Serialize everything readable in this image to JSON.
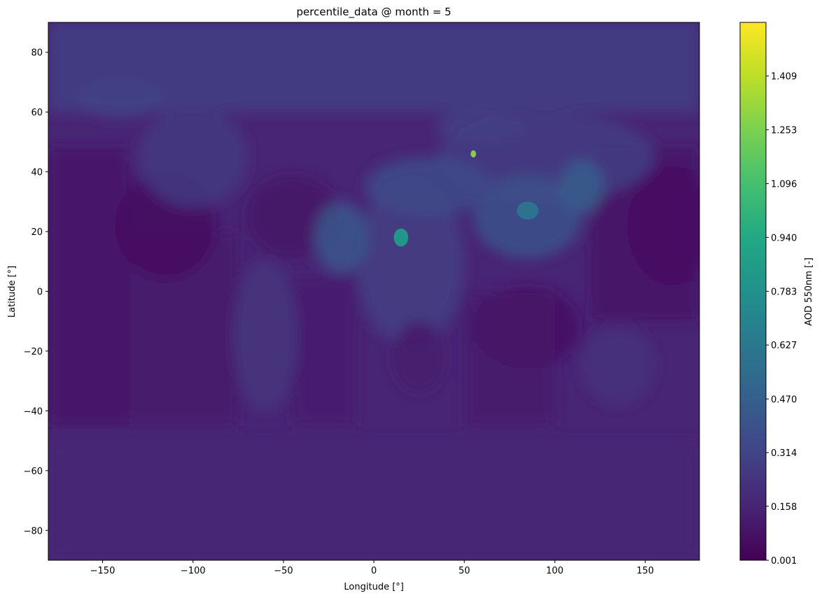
{
  "chart_data": {
    "type": "heatmap",
    "title": "percentile_data @ month = 5",
    "xlabel": "Longitude [°]",
    "ylabel": "Latitude [°]",
    "xlim": [
      -180,
      180
    ],
    "ylim": [
      -90,
      90
    ],
    "x_ticks": [
      -150,
      -100,
      -50,
      0,
      50,
      100,
      150
    ],
    "x_tick_labels": [
      "−150",
      "−100",
      "−50",
      "0",
      "50",
      "100",
      "150"
    ],
    "y_ticks": [
      80,
      60,
      40,
      20,
      0,
      -20,
      -40,
      -60,
      -80
    ],
    "y_tick_labels": [
      "80",
      "60",
      "40",
      "20",
      "0",
      "−20",
      "−40",
      "−60",
      "−80"
    ],
    "grid": false,
    "colorbar": {
      "label": "AOD 550nm [-]",
      "colormap": "viridis",
      "range": [
        0.001,
        1.565
      ],
      "tick_values": [
        0.001,
        0.158,
        0.314,
        0.47,
        0.627,
        0.783,
        0.94,
        1.096,
        1.253,
        1.409
      ],
      "tick_labels": [
        "0.001",
        "0.158",
        "0.314",
        "0.470",
        "0.627",
        "0.783",
        "0.940",
        "1.096",
        "1.253",
        "1.409"
      ]
    },
    "regions": [
      {
        "shape": "rect",
        "lon": [
          -180,
          180
        ],
        "lat": [
          60,
          90
        ],
        "value": 0.27
      },
      {
        "shape": "rect",
        "lon": [
          -180,
          180
        ],
        "lat": [
          -50,
          -90
        ],
        "value": 0.17
      },
      {
        "shape": "rect",
        "lon": [
          -180,
          -135
        ],
        "lat": [
          -45,
          48
        ],
        "value": 0.11
      },
      {
        "shape": "rect",
        "lon": [
          -135,
          -75
        ],
        "lat": [
          -45,
          20
        ],
        "value": 0.12
      },
      {
        "shape": "rect",
        "lon": [
          120,
          180
        ],
        "lat": [
          -10,
          48
        ],
        "value": 0.09
      },
      {
        "shape": "rect",
        "lon": [
          -45,
          -10
        ],
        "lat": [
          -45,
          5
        ],
        "value": 0.13
      },
      {
        "shape": "rect",
        "lon": [
          50,
          100
        ],
        "lat": [
          -45,
          0
        ],
        "value": 0.12
      },
      {
        "shape": "ellipse",
        "lon": -115,
        "lat": 22,
        "rlon": 28,
        "rlat": 18,
        "value": 0.06
      },
      {
        "shape": "ellipse",
        "lon": 165,
        "lat": 22,
        "rlon": 25,
        "rlat": 20,
        "value": 0.07
      },
      {
        "shape": "ellipse",
        "lon": 85,
        "lat": -12,
        "rlon": 30,
        "rlat": 14,
        "value": 0.08
      },
      {
        "shape": "ellipse",
        "lon": -45,
        "lat": 25,
        "rlon": 26,
        "rlat": 14,
        "value": 0.09
      },
      {
        "shape": "ellipse",
        "lon": -100,
        "lat": 45,
        "rlon": 30,
        "rlat": 17,
        "value": 0.25
      },
      {
        "shape": "ellipse",
        "lon": -60,
        "lat": -15,
        "rlon": 18,
        "rlat": 25,
        "value": 0.23
      },
      {
        "shape": "ellipse",
        "lon": 20,
        "lat": 10,
        "rlon": 30,
        "rlat": 28,
        "value": 0.28
      },
      {
        "shape": "ellipse",
        "lon": 25,
        "lat": -22,
        "rlon": 15,
        "rlat": 12,
        "value": 0.12
      },
      {
        "shape": "ellipse",
        "lon": 95,
        "lat": 45,
        "rlon": 60,
        "rlat": 15,
        "value": 0.27
      },
      {
        "shape": "ellipse",
        "lon": 85,
        "lat": 25,
        "rlon": 30,
        "rlat": 14,
        "value": 0.38
      },
      {
        "shape": "ellipse",
        "lon": 30,
        "lat": 35,
        "rlon": 35,
        "rlat": 10,
        "value": 0.34
      },
      {
        "shape": "ellipse",
        "lon": 135,
        "lat": -25,
        "rlon": 20,
        "rlat": 13,
        "value": 0.22
      },
      {
        "shape": "ellipse",
        "lon": -18,
        "lat": 18,
        "rlon": 15,
        "rlat": 12,
        "value": 0.4
      },
      {
        "shape": "ellipse",
        "lon": 115,
        "lat": 35,
        "rlon": 12,
        "rlat": 9,
        "value": 0.45
      },
      {
        "shape": "ellipse",
        "lon": -140,
        "lat": 65,
        "rlon": 25,
        "rlat": 7,
        "value": 0.3
      },
      {
        "shape": "ellipse",
        "lon": 60,
        "lat": 55,
        "rlon": 25,
        "rlat": 6,
        "value": 0.29
      },
      {
        "shape": "ellipse",
        "lon": 15,
        "lat": 18,
        "rlon": 4,
        "rlat": 3,
        "value": 0.85
      },
      {
        "shape": "ellipse",
        "lon": 55,
        "lat": 46,
        "rlon": 1.5,
        "rlat": 1.2,
        "value": 1.3
      },
      {
        "shape": "ellipse",
        "lon": 85,
        "lat": 27,
        "rlon": 6,
        "rlat": 3,
        "value": 0.6
      }
    ]
  }
}
